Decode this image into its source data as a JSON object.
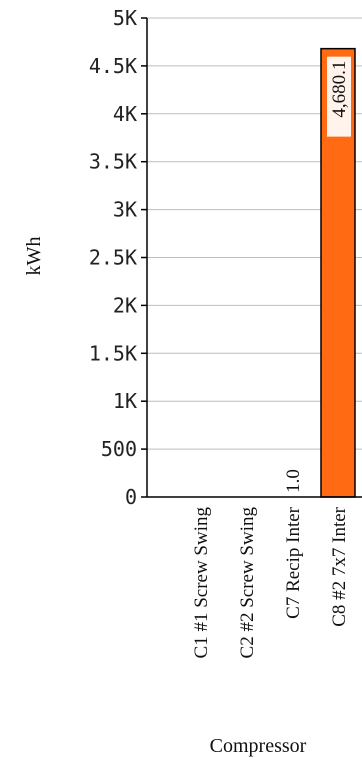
{
  "chart_data": {
    "type": "bar",
    "orientation": "vertical",
    "categories": [
      "C1 #1 Screw Swing",
      "C2 #2 Screw Swing",
      "C7 Recip Inter",
      "C8 #2 7x7 Inter"
    ],
    "values": [
      0,
      0,
      1.0,
      4680.1
    ],
    "data_labels": [
      "",
      "",
      "1.0",
      "4,680.1"
    ],
    "xlabel": "Compressor",
    "ylabel": "kWh",
    "ylim": [
      0,
      5000
    ],
    "yticks": [
      0,
      500,
      1000,
      1500,
      2000,
      2500,
      3000,
      3500,
      4000,
      4500,
      5000
    ],
    "ytick_labels": [
      "0",
      "500",
      "1K",
      "1.5K",
      "2K",
      "2.5K",
      "3K",
      "3.5K",
      "4K",
      "4.5K",
      "5K"
    ],
    "grid": true,
    "bar_color": "#ff6a13",
    "bar_edge_color": "#000000",
    "grid_color": "#bdbdbd"
  }
}
